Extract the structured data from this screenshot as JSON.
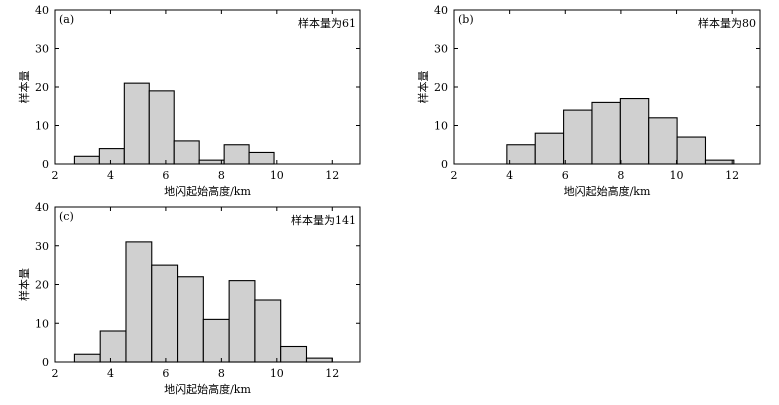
{
  "chart_data": [
    {
      "type": "bar",
      "panel": "(a)",
      "annotation": "样本量为61",
      "xlabel": "地闪起始高度/km",
      "ylabel": "样本量",
      "xlim": [
        2,
        13
      ],
      "ylim": [
        0,
        40
      ],
      "x_ticks": [
        "2",
        "4",
        "6",
        "8",
        "10",
        "12"
      ],
      "y_ticks": [
        "0",
        "10",
        "20",
        "30",
        "40"
      ],
      "bin_width": 0.9,
      "bin_starts": [
        2.7,
        3.6,
        4.5,
        5.4,
        6.3,
        7.2,
        8.1,
        9.0
      ],
      "values": [
        2,
        4,
        21,
        19,
        6,
        1,
        5,
        3
      ],
      "bar_color": "#d0d0d0",
      "grid": false
    },
    {
      "type": "bar",
      "panel": "(b)",
      "annotation": "样本量为80",
      "xlabel": "地闪起始高度/km",
      "ylabel": "样本量",
      "xlim": [
        2,
        13
      ],
      "ylim": [
        0,
        40
      ],
      "x_ticks": [
        "2",
        "4",
        "6",
        "8",
        "10",
        "12"
      ],
      "y_ticks": [
        "0",
        "10",
        "20",
        "30",
        "40"
      ],
      "bin_width": 1.02,
      "bin_starts": [
        3.9,
        4.92,
        5.94,
        6.96,
        7.98,
        9.0,
        10.02,
        11.04
      ],
      "values": [
        5,
        8,
        14,
        16,
        17,
        12,
        7,
        1
      ],
      "bar_color": "#d0d0d0",
      "grid": false
    },
    {
      "type": "bar",
      "panel": "(c)",
      "annotation": "样本量为141",
      "xlabel": "地闪起始高度/km",
      "ylabel": "样本量",
      "xlim": [
        2,
        13
      ],
      "ylim": [
        0,
        40
      ],
      "x_ticks": [
        "2",
        "4",
        "6",
        "8",
        "10",
        "12"
      ],
      "y_ticks": [
        "0",
        "10",
        "20",
        "30",
        "40"
      ],
      "bin_width": 0.93,
      "bin_starts": [
        2.7,
        3.63,
        4.56,
        5.49,
        6.42,
        7.35,
        8.28,
        9.21,
        10.14,
        11.07
      ],
      "values": [
        2,
        8,
        31,
        25,
        22,
        11,
        21,
        16,
        4,
        1
      ],
      "bar_color": "#d0d0d0",
      "grid": false
    }
  ]
}
